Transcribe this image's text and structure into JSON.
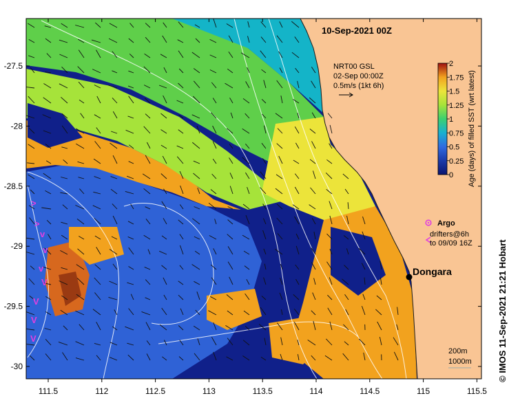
{
  "map": {
    "date_label": "10-Sep-2021 00Z",
    "place_label": "Dongara",
    "longitude_ticks": [
      "111.5",
      "112",
      "112.5",
      "113",
      "113.5",
      "114",
      "114.5",
      "115",
      "115.5"
    ],
    "latitude_ticks": [
      "-27.5",
      "-28",
      "-28.5",
      "-29",
      "-29.5",
      "-30"
    ],
    "current_vectors": {
      "line1": "NRT00 GSL",
      "line2": "02-Sep 00:00Z",
      "line3": "0.5m/s (1kt 6h)"
    },
    "colorbar": {
      "label": "Age (days) of filled SST (wrt latest)",
      "ticks": [
        "2",
        "1.75",
        "1.5",
        "1.25",
        "1",
        "0.75",
        "0.5",
        "0.25",
        "0"
      ],
      "range": [
        0,
        2
      ]
    },
    "legend": {
      "argo_label": "Argo",
      "drifters_line1": "drifters@6h",
      "drifters_line2": "to 09/09 16Z",
      "argo_color": "#e040e0",
      "drifter_color": "#e040e0"
    },
    "contours": {
      "label_200": "200m",
      "label_1000": "1000m"
    },
    "credit": "© IMOS 11-Sep-2021 21:21 Hobart",
    "colors": {
      "land": "#f9c594",
      "navy": "#10208a",
      "blue": "#2f62d6",
      "teal": "#14b4c8",
      "green": "#5fcf4a",
      "lime": "#a6e33a",
      "yellow": "#ece43a",
      "orange": "#f2a21e",
      "dark_orange": "#d7681e",
      "brown": "#9a3a12"
    }
  }
}
